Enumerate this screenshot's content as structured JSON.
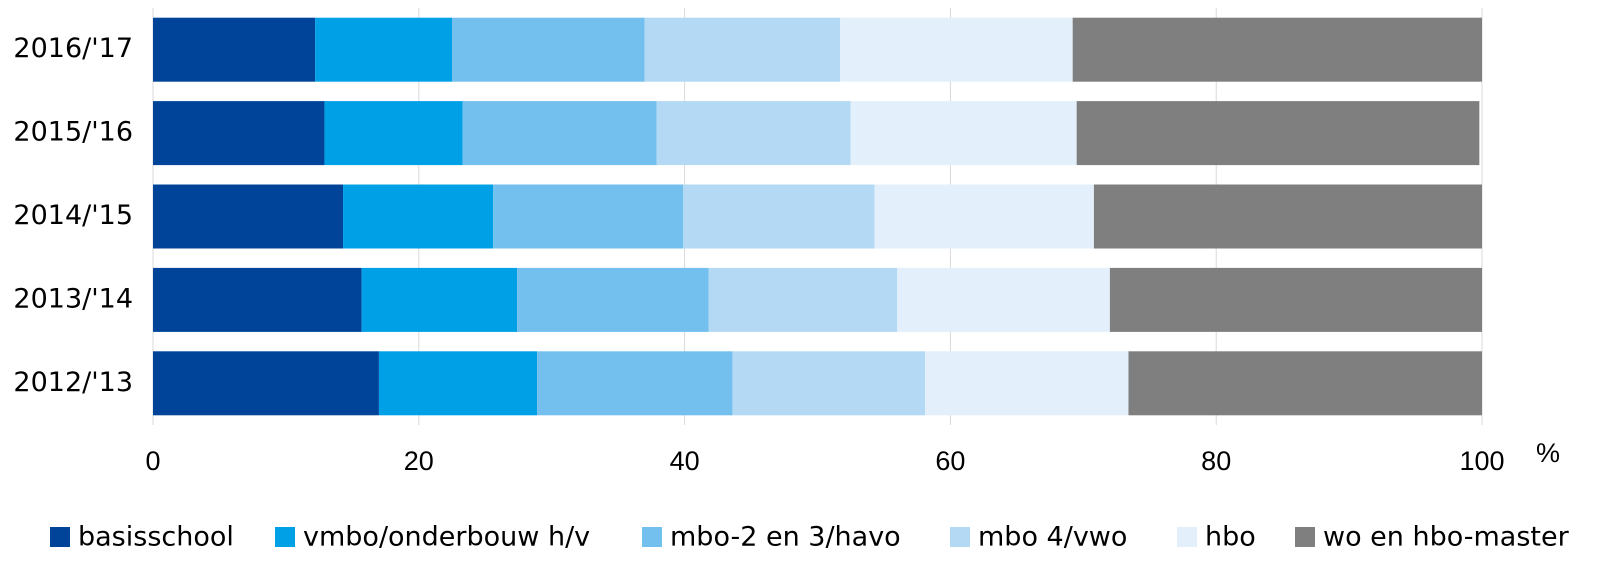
{
  "chart_data": {
    "type": "stacked-barh",
    "categories": [
      "2016/'17",
      "2015/'16",
      "2014/'15",
      "2013/'14",
      "2012/'13"
    ],
    "series": [
      {
        "name": "basisschool",
        "color": "#00449a",
        "values": [
          12.2,
          12.9,
          14.3,
          15.7,
          17.0
        ]
      },
      {
        "name": "vmbo/onderbouw h/v",
        "color": "#00a0e6",
        "values": [
          10.3,
          10.4,
          11.3,
          11.7,
          11.9
        ]
      },
      {
        "name": "mbo-2 en 3/havo",
        "color": "#73bfee",
        "values": [
          14.5,
          14.6,
          14.3,
          14.4,
          14.7
        ]
      },
      {
        "name": "mbo 4/vwo",
        "color": "#b3d9f5",
        "values": [
          14.7,
          14.6,
          14.4,
          14.2,
          14.5
        ]
      },
      {
        "name": "hbo",
        "color": "#e3f0fb",
        "values": [
          17.5,
          17.0,
          16.5,
          16.0,
          15.3
        ]
      },
      {
        "name": "wo en hbo-master",
        "color": "#7f7f7f",
        "values": [
          30.8,
          30.3,
          29.2,
          28.0,
          26.6
        ]
      }
    ],
    "xlabel": "%",
    "xlim": [
      0,
      100
    ],
    "xticks": [
      0,
      20,
      40,
      60,
      80,
      100
    ],
    "grid": true
  }
}
